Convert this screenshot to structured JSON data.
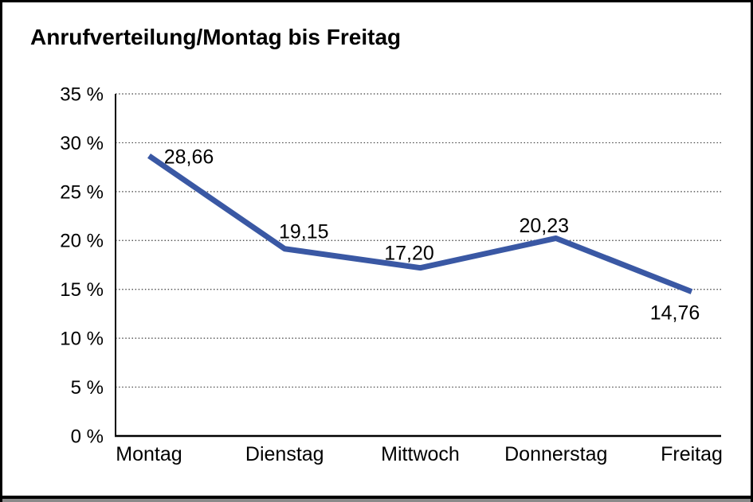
{
  "title": "Anrufverteilung/Montag bis Freitag",
  "colors": {
    "line": "#3a58a4",
    "axis": "#000000",
    "grid": "#3c3c3c",
    "text": "#000000",
    "background": "#ffffff",
    "frame_border": "#000000",
    "frame_bottom_shadow": "#8a8a8a"
  },
  "chart_data": {
    "type": "line",
    "title": "Anrufverteilung/Montag bis Freitag",
    "categories": [
      "Montag",
      "Dienstag",
      "Mittwoch",
      "Donnerstag",
      "Freitag"
    ],
    "values": [
      28.66,
      19.15,
      17.2,
      20.23,
      14.76
    ],
    "point_labels": [
      "28,66",
      "19,15",
      "17,20",
      "20,23",
      "14,76"
    ],
    "y_ticks": [
      0,
      5,
      10,
      15,
      20,
      25,
      30,
      35
    ],
    "y_tick_labels": [
      "0 %",
      "5 %",
      "10 %",
      "15 %",
      "20 %",
      "25 %",
      "30 %",
      "35 %"
    ],
    "ylim": [
      0,
      35
    ],
    "xlabel": "",
    "ylabel": "",
    "legend": "none",
    "grid": "horizontal-dotted",
    "series_count": 1
  }
}
